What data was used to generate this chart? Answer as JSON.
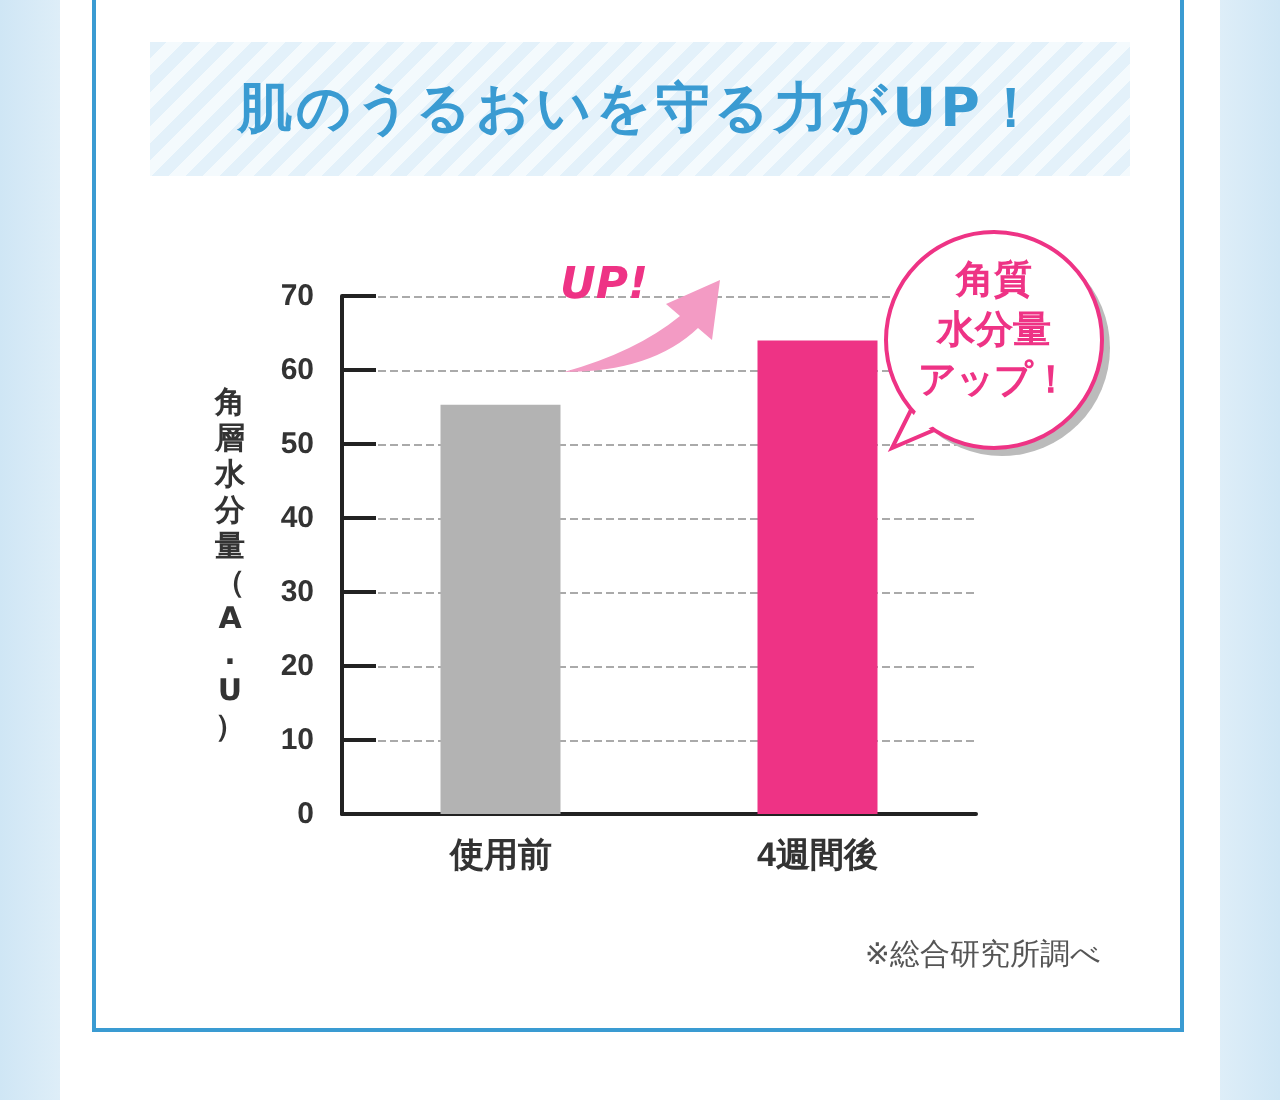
{
  "chart_data": {
    "type": "bar",
    "title": "肌のうるおいを守る力がUP！",
    "ylabel": "角層水分量（A.U）",
    "categories": [
      "使用前",
      "4週間後"
    ],
    "values": [
      55.3,
      64
    ],
    "colors": [
      "#b3b3b3",
      "#ee3385"
    ],
    "ylim": [
      0,
      70
    ],
    "yticks": [
      0,
      10,
      20,
      30,
      40,
      50,
      60,
      70
    ],
    "grid": "y",
    "annotations": [
      "UP!",
      "角質",
      "水分量",
      "アップ！",
      "※総合研究所調べ"
    ]
  }
}
